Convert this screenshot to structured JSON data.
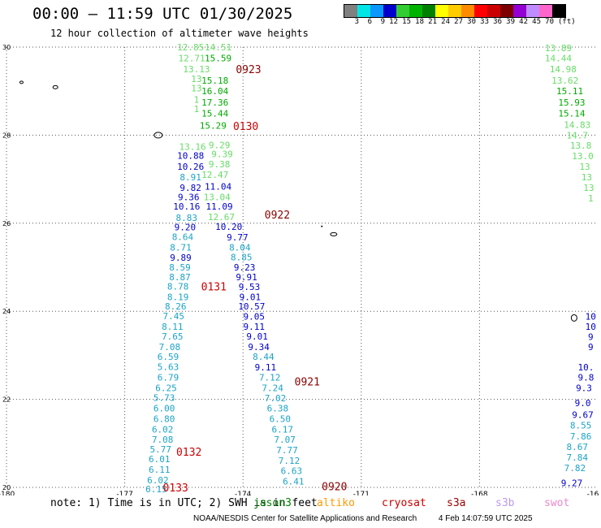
{
  "header": {
    "title": "00:00 – 11:59 UTC 01/30/2025",
    "subtitle": "12 hour collection of altimeter wave heights"
  },
  "scale": {
    "unit": "(ft)",
    "colors": [
      "#808080",
      "#00e5e5",
      "#0a98ff",
      "#0000cd",
      "#33cc33",
      "#00b300",
      "#008000",
      "#ffff00",
      "#ffcc00",
      "#ff8c00",
      "#ff0000",
      "#cc0000",
      "#7f0000",
      "#9400d3",
      "#bf8cff",
      "#ff66cc",
      "#000000"
    ],
    "labels": [
      "3",
      "6",
      "9",
      "12",
      "15",
      "18",
      "21",
      "24",
      "27",
      "30",
      "33",
      "36",
      "39",
      "42",
      "45",
      "70"
    ]
  },
  "map": {
    "lon_ticks": [
      "-180",
      "-177",
      "-174",
      "-171",
      "-168",
      "-16"
    ],
    "lat_ticks": [
      "30",
      "28",
      "26",
      "24",
      "22",
      "20"
    ],
    "pass_labels": [
      {
        "text": "0923",
        "lon": -173.86,
        "lat": 29.5
      },
      {
        "text": "0130",
        "lon": -173.93,
        "lat": 28.21
      },
      {
        "text": "0922",
        "lon": -173.13,
        "lat": 26.2
      },
      {
        "text": "0131",
        "lon": -174.74,
        "lat": 24.57
      },
      {
        "text": "0921",
        "lon": -172.37,
        "lat": 22.41
      },
      {
        "text": "0132",
        "lon": -175.37,
        "lat": 20.81
      },
      {
        "text": "0133",
        "lon": -175.71,
        "lat": 20.0
      },
      {
        "text": "0920",
        "lon": -171.68,
        "lat": 20.03
      }
    ],
    "tracks": [
      {
        "name": "col-a",
        "points": [
          [
            "12.85",
            -175.33,
            30.0,
            "#66dd66"
          ],
          [
            "12.71",
            -175.3,
            29.75,
            "#66dd66"
          ],
          [
            "13.13",
            -175.18,
            29.5,
            "#66dd66"
          ],
          [
            "13",
            -175.18,
            29.28,
            "#66dd66"
          ],
          [
            "13",
            -175.18,
            29.07,
            "#66dd66"
          ],
          [
            "1",
            -175.18,
            28.81,
            "#66dd66"
          ],
          [
            "1",
            -175.18,
            28.6,
            "#66dd66"
          ],
          [
            "13.16",
            -175.28,
            27.74,
            "#66dd66"
          ],
          [
            "10.88",
            -175.33,
            27.54,
            "#0000cd"
          ],
          [
            "10.26",
            -175.33,
            27.29,
            "#0000cd"
          ],
          [
            "8.91",
            -175.33,
            27.05,
            "#1ca3c8"
          ],
          [
            "9.82",
            -175.33,
            26.81,
            "#0000cd"
          ],
          [
            "9.36",
            -175.38,
            26.6,
            "#0000cd"
          ],
          [
            "10.16",
            -175.43,
            26.38,
            "#0000cd"
          ],
          [
            "8.83",
            -175.43,
            26.13,
            "#1ca3c8"
          ],
          [
            "9.20",
            -175.47,
            25.91,
            "#0000cd"
          ],
          [
            "8.64",
            -175.53,
            25.69,
            "#1ca3c8"
          ],
          [
            "8.71",
            -175.58,
            25.45,
            "#1ca3c8"
          ],
          [
            "9.89",
            -175.58,
            25.22,
            "#0000cd"
          ],
          [
            "8.59",
            -175.6,
            25.0,
            "#1ca3c8"
          ],
          [
            "8.87",
            -175.6,
            24.78,
            "#1ca3c8"
          ],
          [
            "8.78",
            -175.65,
            24.57,
            "#1ca3c8"
          ],
          [
            "8.19",
            -175.65,
            24.33,
            "#1ca3c8"
          ],
          [
            "8.26",
            -175.71,
            24.11,
            "#1ca3c8"
          ],
          [
            "7.45",
            -175.76,
            23.89,
            "#1ca3c8"
          ],
          [
            "8.11",
            -175.79,
            23.65,
            "#1ca3c8"
          ],
          [
            "7.65",
            -175.79,
            23.43,
            "#1ca3c8"
          ],
          [
            "7.08",
            -175.86,
            23.19,
            "#1ca3c8"
          ],
          [
            "6.59",
            -175.9,
            22.97,
            "#1ca3c8"
          ],
          [
            "5.63",
            -175.9,
            22.74,
            "#1ca3c8"
          ],
          [
            "6.79",
            -175.9,
            22.5,
            "#1ca3c8"
          ],
          [
            "6.25",
            -175.95,
            22.26,
            "#1ca3c8"
          ],
          [
            "5.73",
            -176.0,
            22.04,
            "#1ca3c8"
          ],
          [
            "6.00",
            -176.0,
            21.8,
            "#1ca3c8"
          ],
          [
            "6.80",
            -176.0,
            21.56,
            "#1ca3c8"
          ],
          [
            "6.02",
            -176.04,
            21.32,
            "#1ca3c8"
          ],
          [
            "7.08",
            -176.04,
            21.09,
            "#1ca3c8"
          ],
          [
            "5.77",
            -176.09,
            20.87,
            "#1ca3c8"
          ],
          [
            "6.01",
            -176.12,
            20.65,
            "#1ca3c8"
          ],
          [
            "6.11",
            -176.12,
            20.41,
            "#1ca3c8"
          ],
          [
            "6.02",
            -176.16,
            20.17,
            "#1ca3c8"
          ],
          [
            "6.15",
            -176.2,
            19.96,
            "#1ca3c8"
          ]
        ]
      },
      {
        "name": "col-b",
        "points": [
          [
            "14.51",
            -174.63,
            30.0,
            "#66dd66"
          ],
          [
            "15.59",
            -174.63,
            29.75,
            "#00aa00"
          ],
          [
            "15.18",
            -174.71,
            29.24,
            "#00aa00"
          ],
          [
            "16.04",
            -174.71,
            29.0,
            "#00aa00"
          ],
          [
            "17.36",
            -174.71,
            28.75,
            "#00aa00"
          ],
          [
            "15.44",
            -174.71,
            28.5,
            "#00aa00"
          ],
          [
            "15.29",
            -174.76,
            28.22,
            "#00aa00"
          ],
          [
            "9.29",
            -174.6,
            27.78,
            "#66dd66"
          ],
          [
            "9.39",
            -174.53,
            27.57,
            "#66dd66"
          ],
          [
            "9.38",
            -174.6,
            27.34,
            "#66dd66"
          ],
          [
            "12.47",
            -174.71,
            27.1,
            "#66dd66"
          ],
          [
            "11.04",
            -174.63,
            26.84,
            "#0000cd"
          ],
          [
            "13.04",
            -174.66,
            26.6,
            "#66dd66"
          ],
          [
            "11.09",
            -174.6,
            26.38,
            "#0000cd"
          ],
          [
            "12.67",
            -174.55,
            26.14,
            "#66dd66"
          ]
        ]
      },
      {
        "name": "col-c",
        "points": [
          [
            "10.20",
            -174.36,
            25.92,
            "#0000cd"
          ],
          [
            "9.77",
            -174.14,
            25.68,
            "#0000cd"
          ],
          [
            "8.04",
            -174.08,
            25.45,
            "#1ca3c8"
          ],
          [
            "8.85",
            -174.04,
            25.23,
            "#1ca3c8"
          ],
          [
            "9.23",
            -173.96,
            25.0,
            "#0000cd"
          ],
          [
            "9.91",
            -173.91,
            24.78,
            "#0000cd"
          ],
          [
            "9.53",
            -173.84,
            24.56,
            "#0000cd"
          ],
          [
            "9.01",
            -173.82,
            24.33,
            "#0000cd"
          ],
          [
            "10.57",
            -173.78,
            24.11,
            "#0000cd"
          ],
          [
            "9.05",
            -173.72,
            23.88,
            "#0000cd"
          ],
          [
            "9.11",
            -173.72,
            23.65,
            "#0000cd"
          ],
          [
            "9.01",
            -173.64,
            23.43,
            "#0000cd"
          ],
          [
            "9.34",
            -173.6,
            23.19,
            "#0000cd"
          ],
          [
            "8.44",
            -173.48,
            22.97,
            "#1ca3c8"
          ],
          [
            "9.11",
            -173.43,
            22.73,
            "#0000cd"
          ],
          [
            "7.12",
            -173.32,
            22.5,
            "#1ca3c8"
          ],
          [
            "7.24",
            -173.25,
            22.26,
            "#1ca3c8"
          ],
          [
            "7.02",
            -173.18,
            22.03,
            "#1ca3c8"
          ],
          [
            "6.38",
            -173.12,
            21.8,
            "#1ca3c8"
          ],
          [
            "6.50",
            -173.06,
            21.56,
            "#1ca3c8"
          ],
          [
            "6.17",
            -173.0,
            21.32,
            "#1ca3c8"
          ],
          [
            "7.07",
            -172.94,
            21.09,
            "#1ca3c8"
          ],
          [
            "7.77",
            -172.88,
            20.85,
            "#1ca3c8"
          ],
          [
            "7.12",
            -172.83,
            20.61,
            "#1ca3c8"
          ],
          [
            "6.63",
            -172.77,
            20.38,
            "#1ca3c8"
          ],
          [
            "6.41",
            -172.72,
            20.14,
            "#1ca3c8"
          ]
        ]
      },
      {
        "name": "col-d",
        "points": [
          [
            "13.89",
            -166.0,
            29.98,
            "#66dd66"
          ],
          [
            "14.44",
            -166.0,
            29.75,
            "#66dd66"
          ],
          [
            "14.98",
            -165.88,
            29.5,
            "#66dd66"
          ],
          [
            "13.62",
            -165.83,
            29.24,
            "#66dd66"
          ],
          [
            "15.11",
            -165.71,
            29.0,
            "#00aa00"
          ],
          [
            "15.93",
            -165.66,
            28.75,
            "#00aa00"
          ],
          [
            "15.14",
            -165.66,
            28.5,
            "#00aa00"
          ],
          [
            "14.83",
            -165.52,
            28.24,
            "#66dd66"
          ],
          [
            "14.7",
            -165.52,
            28.0,
            "#66dd66"
          ],
          [
            "13.8",
            -165.43,
            27.77,
            "#66dd66"
          ],
          [
            "13.0",
            -165.38,
            27.53,
            "#66dd66"
          ],
          [
            "13",
            -165.33,
            27.29,
            "#66dd66"
          ],
          [
            "13",
            -165.28,
            27.05,
            "#66dd66"
          ],
          [
            "13",
            -165.23,
            26.81,
            "#66dd66"
          ],
          [
            "1",
            -165.18,
            26.57,
            "#66dd66"
          ]
        ]
      },
      {
        "name": "col-e",
        "points": [
          [
            "10",
            -165.18,
            23.88,
            "#0000cd"
          ],
          [
            "10",
            -165.18,
            23.65,
            "#0000cd"
          ],
          [
            "9",
            -165.18,
            23.42,
            "#0000cd"
          ],
          [
            "9",
            -165.18,
            23.19,
            "#0000cd"
          ],
          [
            "10.",
            -165.3,
            22.73,
            "#0000cd"
          ],
          [
            "9.8",
            -165.3,
            22.5,
            "#0000cd"
          ],
          [
            "9.3",
            -165.35,
            22.26,
            "#0000cd"
          ],
          [
            "9.0",
            -165.38,
            21.92,
            "#0000cd"
          ],
          [
            "9.67",
            -165.38,
            21.65,
            "#0000cd"
          ],
          [
            "8.55",
            -165.43,
            21.41,
            "#1ca3c8"
          ],
          [
            "7.86",
            -165.43,
            21.16,
            "#1ca3c8"
          ],
          [
            "8.67",
            -165.52,
            20.92,
            "#1ca3c8"
          ],
          [
            "7.84",
            -165.52,
            20.68,
            "#1ca3c8"
          ],
          [
            "7.82",
            -165.58,
            20.44,
            "#1ca3c8"
          ],
          [
            "9.27",
            -165.66,
            20.1,
            "#0000cd"
          ]
        ]
      }
    ]
  },
  "footer": {
    "note": "note:  1) Time is in UTC; 2) SWH is in feet",
    "satellites": [
      {
        "label": "jason3",
        "color": "#008000"
      },
      {
        "label": "altiko",
        "color": "#ff9900"
      },
      {
        "label": "cryosat",
        "color": "#cc0000"
      },
      {
        "label": "s3a",
        "color": "#990000"
      },
      {
        "label": "s3b",
        "color": "#bb99ee"
      },
      {
        "label": "swot",
        "color": "#ee88cc"
      }
    ],
    "credit": "NOAA/NESDIS Center for Satellite Applications and Research",
    "date": "4 Feb 14:07:59 UTC 2025"
  }
}
